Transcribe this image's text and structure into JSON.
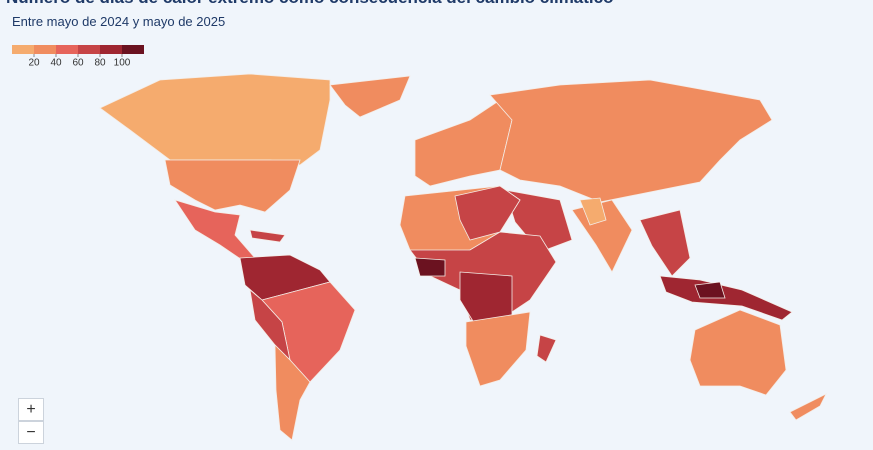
{
  "header": {
    "title": "Número de días de calor extremo como consecuencia del cambio climático",
    "subtitle": "Entre mayo de 2024 y mayo de 2025"
  },
  "legend": {
    "colors": [
      "#f5ab6e",
      "#f08c5f",
      "#e6645b",
      "#c64446",
      "#9f2631",
      "#6b1220"
    ],
    "ticks": [
      20,
      40,
      60,
      80,
      100
    ]
  },
  "controls": {
    "zoom_in": "+",
    "zoom_out": "−"
  }
}
